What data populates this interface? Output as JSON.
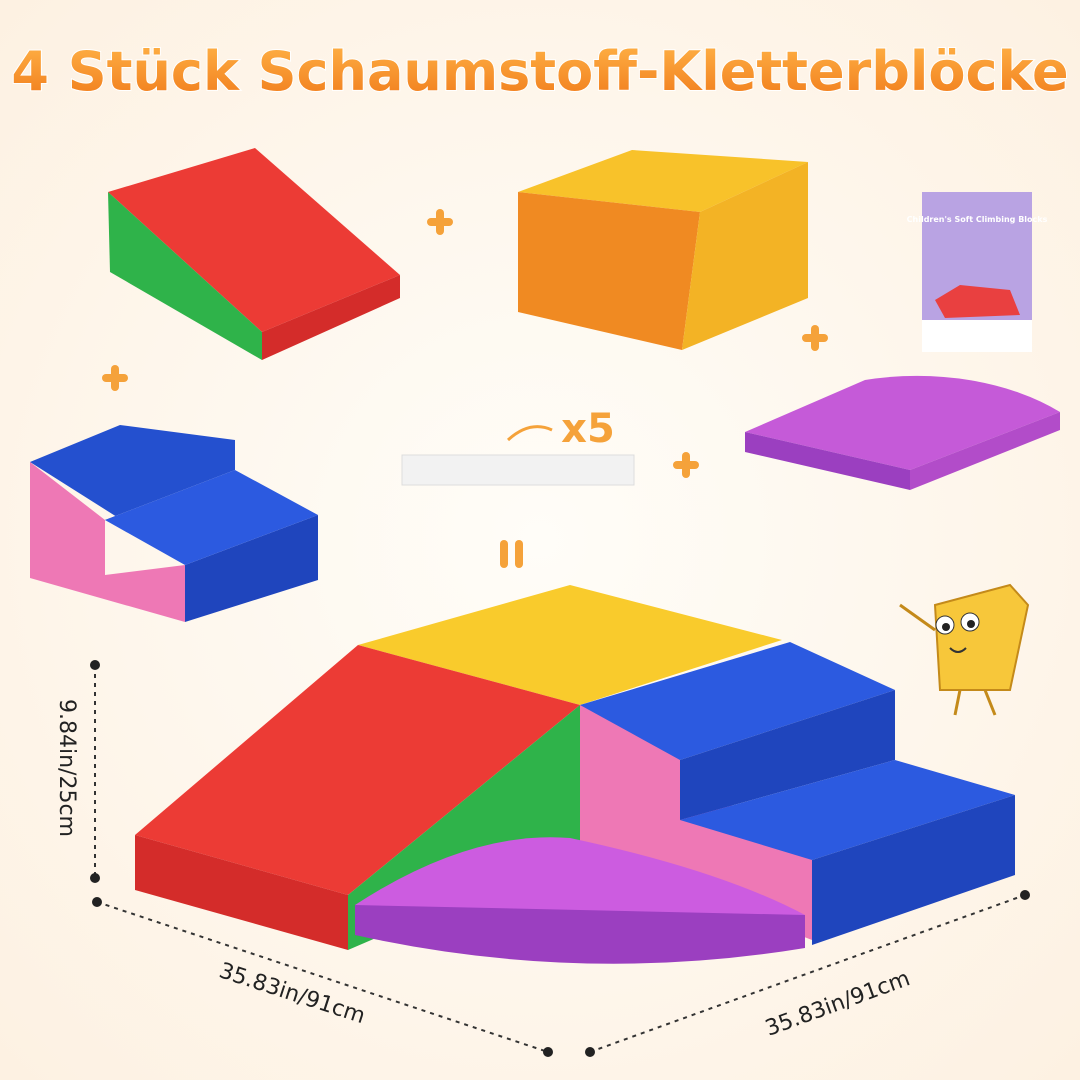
{
  "title": "4 Stück Schaumstoff-Kletterblöcke",
  "fastener_count": "x5",
  "manual": {
    "title": "Children's Soft Climbing Blocks"
  },
  "dimensions": {
    "height": "9.84in/25cm",
    "width": "35.83in/91cm",
    "depth": "35.83in/91cm"
  }
}
